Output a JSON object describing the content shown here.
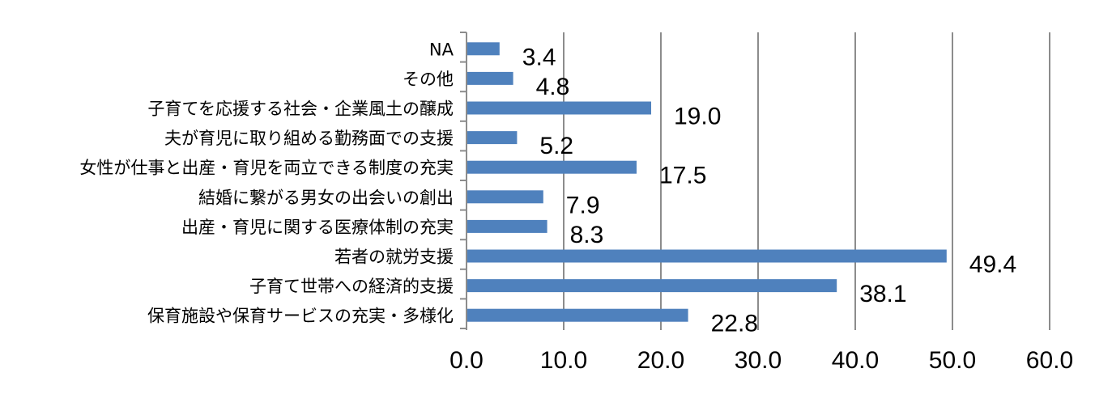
{
  "chart_data": {
    "type": "bar",
    "orientation": "horizontal",
    "categories": [
      "NA",
      "その他",
      "子育てを応援する社会・企業風土の醸成",
      "夫が育児に取り組める勤務面での支援",
      "女性が仕事と出産・育児を両立できる制度の充実",
      "結婚に繋がる男女の出会いの創出",
      "出産・育児に関する医療体制の充実",
      "若者の就労支援",
      "子育て世帯への経済的支援",
      "保育施設や保育サービスの充実・多様化"
    ],
    "values": [
      3.4,
      4.8,
      19.0,
      5.2,
      17.5,
      7.9,
      8.3,
      49.4,
      38.1,
      22.8
    ],
    "value_labels": [
      "3.4",
      "4.8",
      "19.0",
      "5.2",
      "17.5",
      "7.9",
      "8.3",
      "49.4",
      "38.1",
      "22.8"
    ],
    "xlim": [
      0,
      60
    ],
    "xticks": [
      0,
      10,
      20,
      30,
      40,
      50,
      60
    ],
    "xtick_labels": [
      "0.0",
      "10.0",
      "20.0",
      "30.0",
      "40.0",
      "50.0",
      "60.0"
    ],
    "grid": true,
    "bar_color": "#4f81bd",
    "grid_color": "#8c8c8c",
    "title": "",
    "xlabel": "",
    "ylabel": ""
  }
}
